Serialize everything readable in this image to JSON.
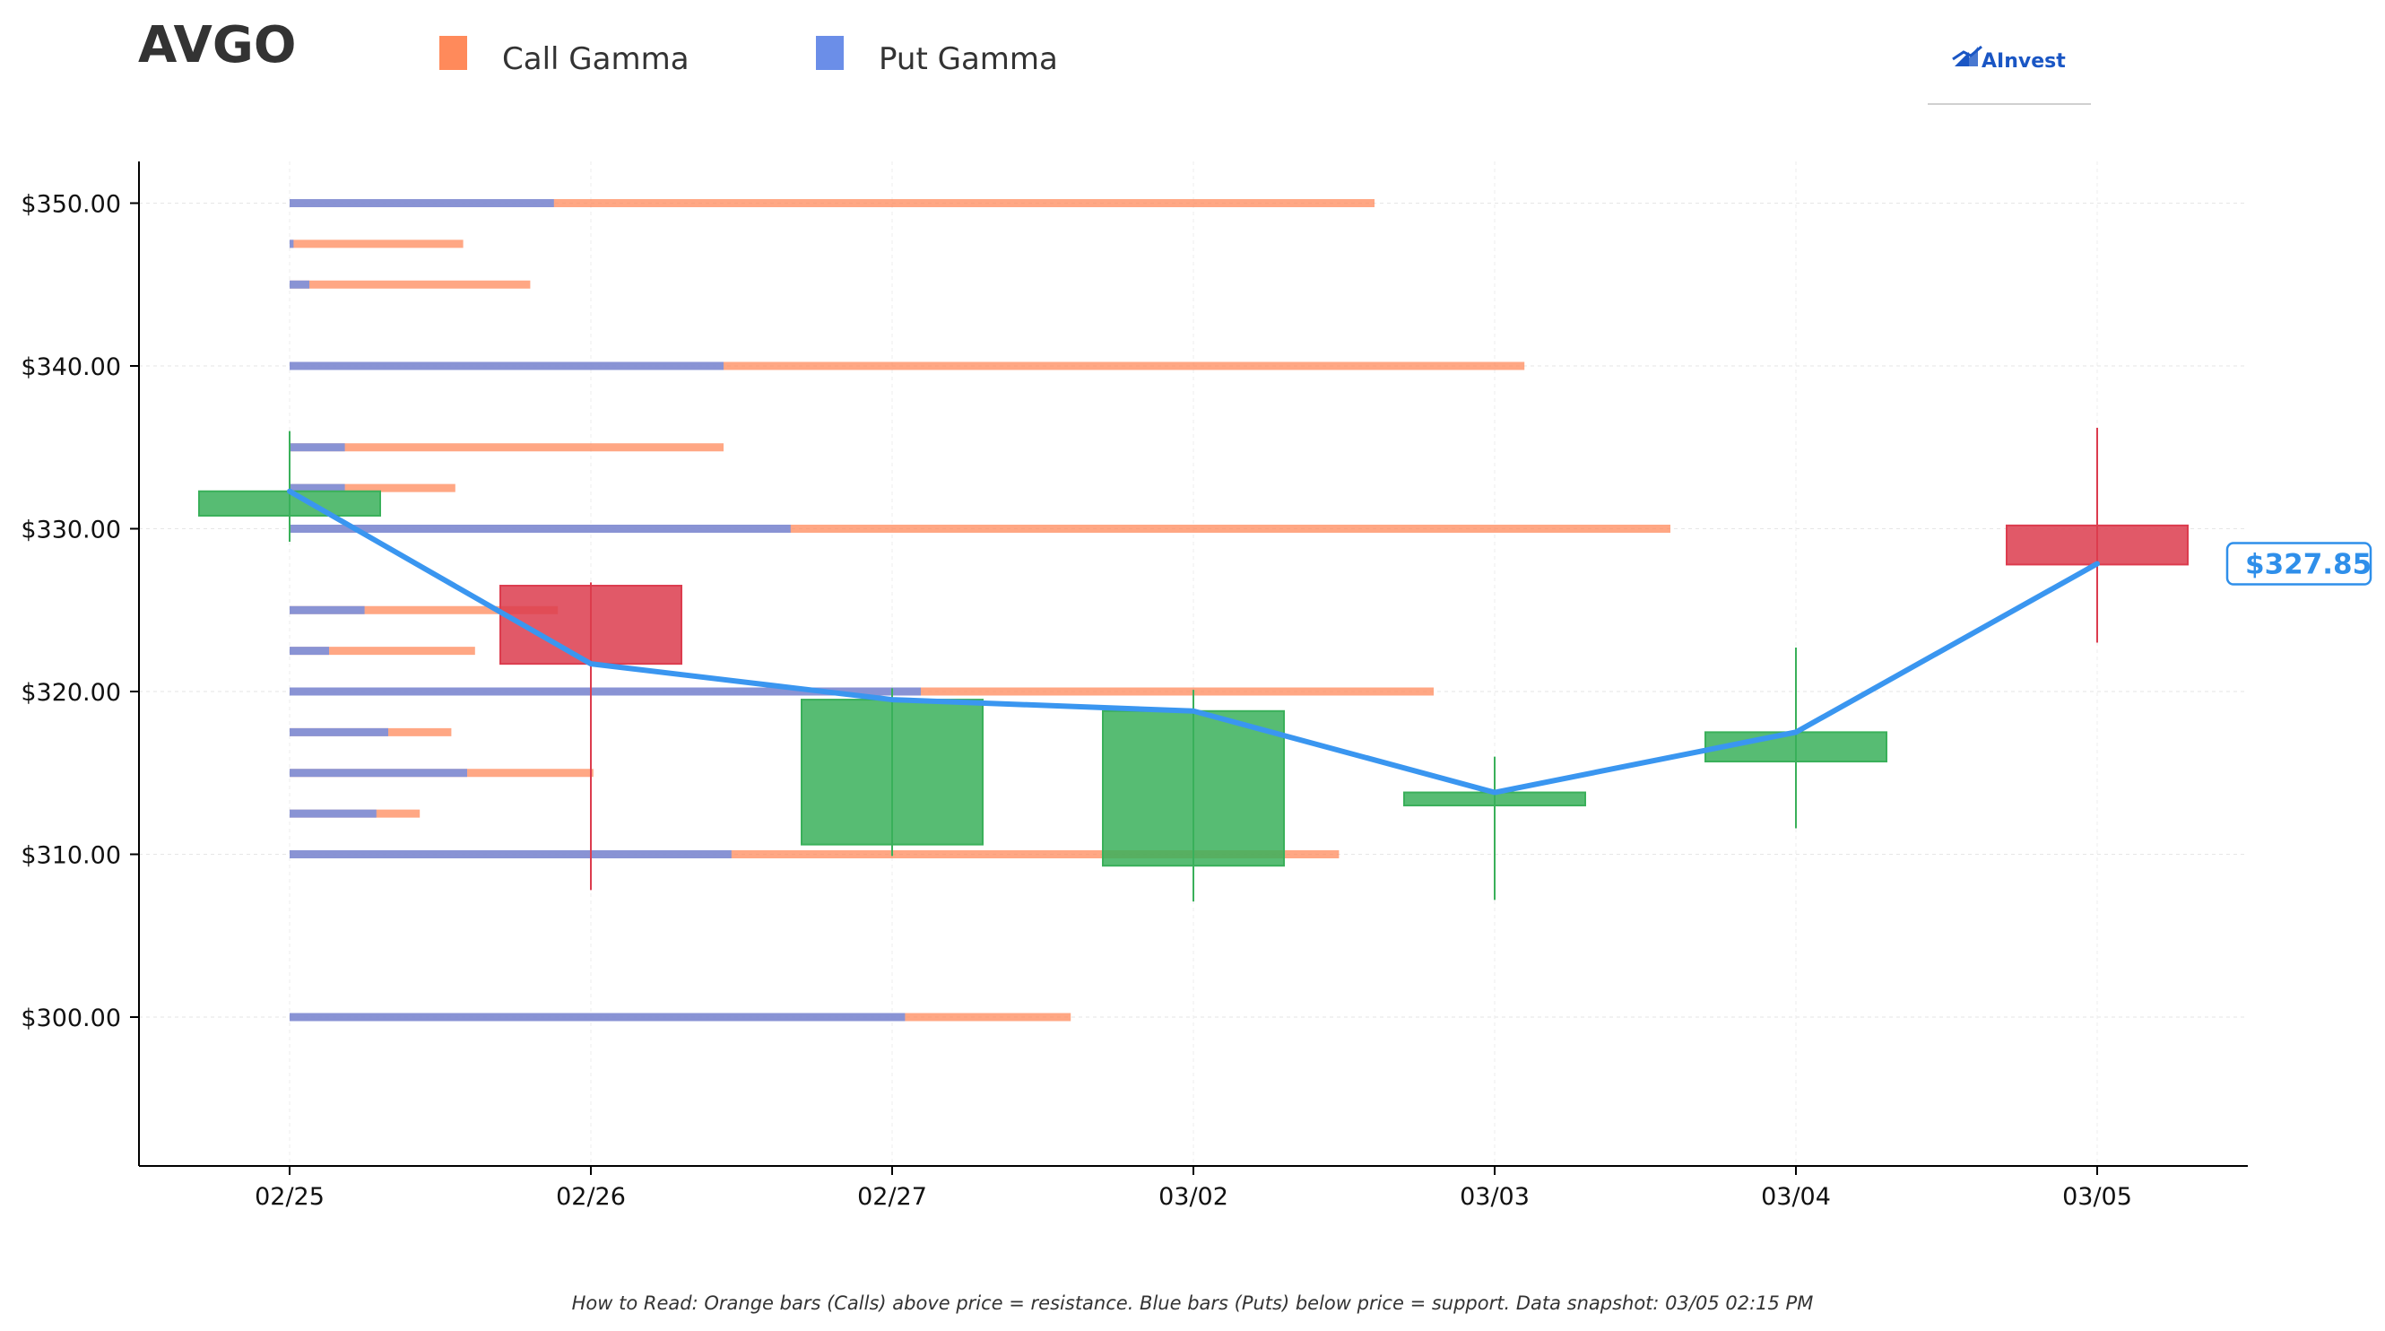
{
  "header": {
    "ticker": "AVGO",
    "logo_text": "AInvest"
  },
  "legend": [
    {
      "label": "Call Gamma",
      "color": "#ff8a5b"
    },
    {
      "label": "Put Gamma",
      "color": "#6b8ee8"
    }
  ],
  "footnote": "How to Read: Orange bars (Calls) above price = resistance. Blue bars (Puts) below price = support. Data snapshot: 03/05 02:15 PM",
  "current_price": {
    "label": "$327.85",
    "value": 327.85,
    "color": "#2f8fea"
  },
  "chart_data": {
    "type": "candlestick",
    "categories": [
      "02/25",
      "02/26",
      "02/27",
      "03/02",
      "03/03",
      "03/04",
      "03/05"
    ],
    "ylim": [
      290.8,
      352.5
    ],
    "yticks": [
      300,
      310,
      320,
      330,
      340,
      350
    ],
    "ytick_labels": [
      "$300.00",
      "$310.00",
      "$320.00",
      "$330.00",
      "$340.00",
      "$350.00"
    ],
    "grid": true,
    "legend_position": "top-left",
    "candles": [
      {
        "date": "02/25",
        "open": 330.8,
        "close": 332.3,
        "high": 336.0,
        "low": 329.2,
        "direction": "up"
      },
      {
        "date": "02/26",
        "open": 326.5,
        "close": 321.7,
        "high": 326.7,
        "low": 307.8,
        "direction": "down"
      },
      {
        "date": "02/27",
        "open": 310.6,
        "close": 319.5,
        "high": 320.2,
        "low": 309.9,
        "direction": "up"
      },
      {
        "date": "03/02",
        "open": 309.3,
        "close": 318.8,
        "high": 320.1,
        "low": 307.1,
        "direction": "up"
      },
      {
        "date": "03/03",
        "open": 313.0,
        "close": 313.8,
        "high": 316.0,
        "low": 307.2,
        "direction": "up"
      },
      {
        "date": "03/04",
        "open": 315.7,
        "close": 317.5,
        "high": 322.7,
        "low": 311.6,
        "direction": "up"
      },
      {
        "date": "03/05",
        "open": 330.2,
        "close": 327.8,
        "high": 336.2,
        "low": 323.0,
        "direction": "down"
      }
    ],
    "close_line": [
      332.3,
      321.7,
      319.5,
      318.8,
      313.8,
      317.5,
      327.85
    ],
    "gamma_levels": [
      {
        "strike": 350.0,
        "put": 0.67,
        "call": 2.08
      },
      {
        "strike": 347.5,
        "put": 0.01,
        "call": 0.43
      },
      {
        "strike": 345.0,
        "put": 0.05,
        "call": 0.56
      },
      {
        "strike": 340.0,
        "put": 1.1,
        "call": 2.03
      },
      {
        "strike": 335.0,
        "put": 0.14,
        "call": 0.96
      },
      {
        "strike": 332.5,
        "put": 0.14,
        "call": 0.28
      },
      {
        "strike": 330.0,
        "put": 1.27,
        "call": 2.23
      },
      {
        "strike": 325.0,
        "put": 0.19,
        "call": 0.49
      },
      {
        "strike": 322.5,
        "put": 0.1,
        "call": 0.37
      },
      {
        "strike": 320.0,
        "put": 1.6,
        "call": 1.3
      },
      {
        "strike": 317.5,
        "put": 0.25,
        "call": 0.16
      },
      {
        "strike": 315.0,
        "put": 0.45,
        "call": 0.32
      },
      {
        "strike": 312.5,
        "put": 0.22,
        "call": 0.11
      },
      {
        "strike": 310.0,
        "put": 1.12,
        "call": 1.54
      },
      {
        "strike": 300.0,
        "put": 1.56,
        "call": 0.42
      }
    ],
    "colors": {
      "up": "#3ab05a",
      "down": "#dc3c4e",
      "call": "#ff8a5b",
      "put": "#6b8ee8",
      "line": "#3a96f0"
    }
  }
}
